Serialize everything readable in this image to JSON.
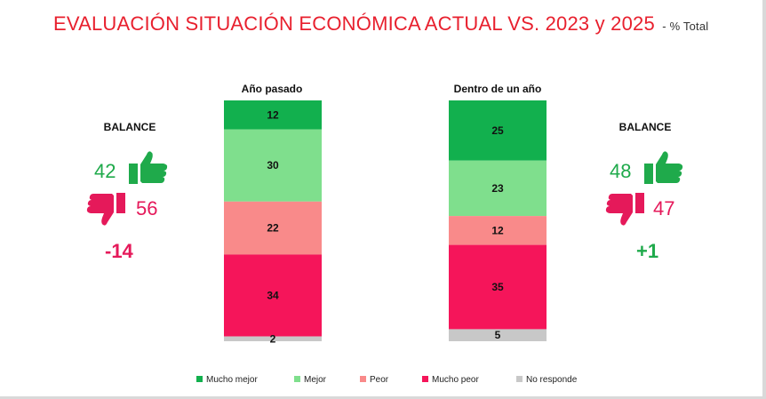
{
  "title": "EVALUACIÓN SITUACIÓN ECONÓMICA ACTUAL VS. 2023 y 2025",
  "subtitle": "- % Total",
  "balance_left": {
    "label": "BALANCE",
    "positive": "42",
    "negative": "56",
    "net": "-14",
    "net_color": "#e5195a"
  },
  "balance_right": {
    "label": "BALANCE",
    "positive": "48",
    "negative": "47",
    "net": "+1",
    "net_color": "#1faa4b"
  },
  "icons": {
    "thumbs_up": "thumbs-up-icon",
    "thumbs_down": "thumbs-down-icon",
    "up_color": "#1faa4b",
    "down_color": "#e5195a"
  },
  "chart_data": {
    "type": "bar",
    "stacked": true,
    "orientation": "vertical",
    "categories": [
      "Año pasado",
      "Dentro de un año"
    ],
    "series": [
      {
        "name": "Mucho mejor",
        "color": "#12b04e",
        "values": [
          12,
          25
        ]
      },
      {
        "name": "Mejor",
        "color": "#7fdf8d",
        "values": [
          30,
          23
        ]
      },
      {
        "name": "Peor",
        "color": "#f98a8a",
        "values": [
          22,
          12
        ]
      },
      {
        "name": "Mucho peor",
        "color": "#f5155a",
        "values": [
          34,
          35
        ]
      },
      {
        "name": "No responde",
        "color": "#c8c8c8",
        "values": [
          2,
          5
        ]
      }
    ],
    "ylim": [
      0,
      100
    ],
    "legend_position": "bottom",
    "grid": false
  }
}
